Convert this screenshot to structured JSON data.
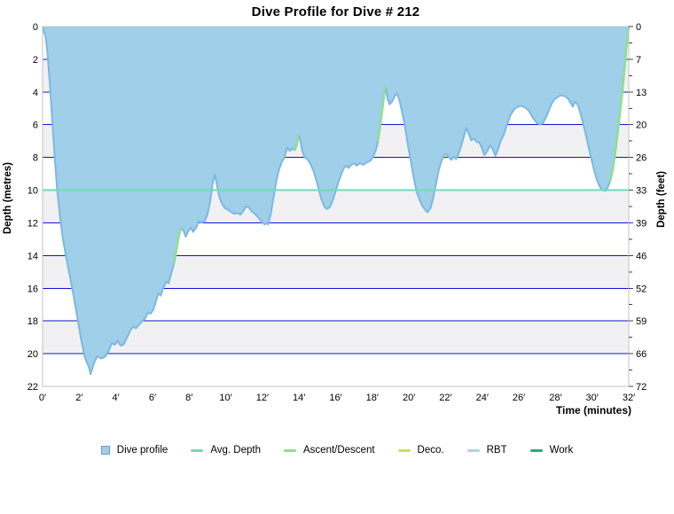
{
  "chart_data": {
    "type": "area",
    "title": "Dive Profile for Dive # 212",
    "x_label": "Time (minutes)",
    "y_left_label": "Depth (metres)",
    "y_right_label": "Depth (feet)",
    "x_range": [
      0,
      32
    ],
    "y_range": [
      0,
      22
    ],
    "grid": true,
    "x_tick_values": [
      0,
      2,
      4,
      6,
      8,
      10,
      12,
      14,
      16,
      18,
      20,
      22,
      24,
      26,
      28,
      30,
      32
    ],
    "x_tick_labels": [
      "0′",
      "2′",
      "4′",
      "6′",
      "8′",
      "10′",
      "12′",
      "14′",
      "16′",
      "18′",
      "20′",
      "22′",
      "24′",
      "26′",
      "28′",
      "30′",
      "32′"
    ],
    "y_left_ticks": [
      0,
      2,
      4,
      6,
      8,
      10,
      12,
      14,
      16,
      18,
      20,
      22
    ],
    "y_right_tick_labels": [
      "0",
      "7",
      "13",
      "20",
      "26",
      "33",
      "39",
      "46",
      "52",
      "59",
      "66",
      "72"
    ],
    "avg_depth_m": 10,
    "max_depth_m": 21.3,
    "profile": [
      [
        0,
        0
      ],
      [
        0.18,
        0.7
      ],
      [
        0.28,
        1.8
      ],
      [
        0.4,
        3.6
      ],
      [
        0.52,
        5.6
      ],
      [
        0.65,
        7.8
      ],
      [
        0.8,
        10
      ],
      [
        0.95,
        11.6
      ],
      [
        1.1,
        12.9
      ],
      [
        1.3,
        14.2
      ],
      [
        1.5,
        15.3
      ],
      [
        1.7,
        16.5
      ],
      [
        1.9,
        17.8
      ],
      [
        2.1,
        19.1
      ],
      [
        2.3,
        20.2
      ],
      [
        2.42,
        20.55
      ],
      [
        2.52,
        20.8
      ],
      [
        2.62,
        21.25
      ],
      [
        2.72,
        20.9
      ],
      [
        2.85,
        20.45
      ],
      [
        3,
        20.15
      ],
      [
        3.2,
        20.3
      ],
      [
        3.4,
        20.2
      ],
      [
        3.6,
        19.85
      ],
      [
        3.78,
        19.35
      ],
      [
        3.95,
        19.45
      ],
      [
        4.1,
        19.2
      ],
      [
        4.25,
        19.5
      ],
      [
        4.42,
        19.45
      ],
      [
        4.6,
        19.05
      ],
      [
        4.78,
        18.6
      ],
      [
        4.95,
        18.35
      ],
      [
        5.1,
        18.45
      ],
      [
        5.28,
        18.2
      ],
      [
        5.45,
        18
      ],
      [
        5.6,
        17.85
      ],
      [
        5.75,
        17.5
      ],
      [
        5.9,
        17.55
      ],
      [
        6.05,
        17.3
      ],
      [
        6.2,
        16.75
      ],
      [
        6.32,
        16.3
      ],
      [
        6.45,
        16.45
      ],
      [
        6.6,
        15.95
      ],
      [
        6.75,
        15.6
      ],
      [
        6.88,
        15.7
      ],
      [
        7.02,
        15.1
      ],
      [
        7.18,
        14.5
      ],
      [
        7.3,
        13.7
      ],
      [
        7.45,
        12.7
      ],
      [
        7.58,
        12.3
      ],
      [
        7.7,
        12.5
      ],
      [
        7.82,
        12.85
      ],
      [
        7.95,
        12.5
      ],
      [
        8.1,
        12.3
      ],
      [
        8.22,
        12.55
      ],
      [
        8.38,
        12.3
      ],
      [
        8.52,
        11.9
      ],
      [
        8.68,
        12
      ],
      [
        8.85,
        11.9
      ],
      [
        9,
        11.5
      ],
      [
        9.15,
        10.7
      ],
      [
        9.28,
        9.6
      ],
      [
        9.4,
        9.05
      ],
      [
        9.52,
        9.7
      ],
      [
        9.65,
        10.4
      ],
      [
        9.8,
        10.85
      ],
      [
        9.95,
        11.1
      ],
      [
        10.12,
        11.2
      ],
      [
        10.3,
        11.35
      ],
      [
        10.48,
        11.45
      ],
      [
        10.65,
        11.4
      ],
      [
        10.8,
        11.5
      ],
      [
        10.95,
        11.3
      ],
      [
        11.1,
        11
      ],
      [
        11.25,
        11.05
      ],
      [
        11.42,
        11.3
      ],
      [
        11.58,
        11.45
      ],
      [
        11.72,
        11.6
      ],
      [
        11.88,
        11.8
      ],
      [
        12.02,
        12
      ],
      [
        12.12,
        12.1
      ],
      [
        12.22,
        12
      ],
      [
        12.3,
        12.1
      ],
      [
        12.45,
        11.5
      ],
      [
        12.6,
        10.5
      ],
      [
        12.75,
        9.5
      ],
      [
        12.9,
        8.75
      ],
      [
        13.05,
        8.3
      ],
      [
        13.2,
        8
      ],
      [
        13.35,
        7.4
      ],
      [
        13.5,
        7.6
      ],
      [
        13.65,
        7.45
      ],
      [
        13.78,
        7.55
      ],
      [
        13.88,
        7.2
      ],
      [
        13.97,
        6.6
      ],
      [
        14.07,
        6.95
      ],
      [
        14.18,
        7.6
      ],
      [
        14.3,
        8
      ],
      [
        14.45,
        8.1
      ],
      [
        14.62,
        8.4
      ],
      [
        14.8,
        8.85
      ],
      [
        15,
        9.6
      ],
      [
        15.2,
        10.5
      ],
      [
        15.38,
        11
      ],
      [
        15.52,
        11.15
      ],
      [
        15.68,
        11.05
      ],
      [
        15.85,
        10.6
      ],
      [
        16,
        10.05
      ],
      [
        16.15,
        9.5
      ],
      [
        16.3,
        9.05
      ],
      [
        16.45,
        8.65
      ],
      [
        16.58,
        8.5
      ],
      [
        16.7,
        8.65
      ],
      [
        16.85,
        8.45
      ],
      [
        17,
        8.35
      ],
      [
        17.15,
        8.5
      ],
      [
        17.32,
        8.35
      ],
      [
        17.5,
        8.45
      ],
      [
        17.7,
        8.3
      ],
      [
        17.9,
        8.2
      ],
      [
        18.05,
        7.95
      ],
      [
        18.2,
        7.55
      ],
      [
        18.32,
        6.95
      ],
      [
        18.45,
        5.9
      ],
      [
        18.58,
        4.75
      ],
      [
        18.68,
        3.85
      ],
      [
        18.73,
        3.7
      ],
      [
        18.82,
        4.4
      ],
      [
        18.95,
        4.75
      ],
      [
        19.1,
        4.55
      ],
      [
        19.25,
        4.2
      ],
      [
        19.35,
        4.1
      ],
      [
        19.48,
        4.5
      ],
      [
        19.62,
        5.2
      ],
      [
        19.78,
        6.1
      ],
      [
        19.92,
        7.1
      ],
      [
        20.08,
        8.1
      ],
      [
        20.25,
        9.2
      ],
      [
        20.42,
        10.1
      ],
      [
        20.58,
        10.6
      ],
      [
        20.72,
        10.95
      ],
      [
        20.88,
        11.2
      ],
      [
        21.02,
        11.35
      ],
      [
        21.18,
        11.1
      ],
      [
        21.32,
        10.5
      ],
      [
        21.48,
        9.6
      ],
      [
        21.62,
        8.8
      ],
      [
        21.78,
        8.2
      ],
      [
        21.92,
        7.85
      ],
      [
        22.05,
        7.8
      ],
      [
        22.18,
        8
      ],
      [
        22.32,
        8.15
      ],
      [
        22.45,
        7.95
      ],
      [
        22.58,
        8.1
      ],
      [
        22.72,
        7.75
      ],
      [
        22.85,
        7.3
      ],
      [
        23,
        6.7
      ],
      [
        23.12,
        6.2
      ],
      [
        23.25,
        6.5
      ],
      [
        23.4,
        6.95
      ],
      [
        23.55,
        6.85
      ],
      [
        23.7,
        7.05
      ],
      [
        23.85,
        7.1
      ],
      [
        24,
        7.5
      ],
      [
        24.12,
        7.85
      ],
      [
        24.28,
        7.6
      ],
      [
        24.42,
        7.25
      ],
      [
        24.58,
        7.5
      ],
      [
        24.72,
        7.9
      ],
      [
        24.88,
        7.45
      ],
      [
        25.02,
        6.95
      ],
      [
        25.18,
        6.6
      ],
      [
        25.35,
        6
      ],
      [
        25.55,
        5.4
      ],
      [
        25.75,
        5.05
      ],
      [
        25.95,
        4.9
      ],
      [
        26.15,
        4.85
      ],
      [
        26.35,
        4.95
      ],
      [
        26.55,
        5.15
      ],
      [
        26.75,
        5.55
      ],
      [
        26.95,
        5.85
      ],
      [
        27.15,
        6
      ],
      [
        27.32,
        5.9
      ],
      [
        27.5,
        5.5
      ],
      [
        27.65,
        5.1
      ],
      [
        27.8,
        4.7
      ],
      [
        27.95,
        4.45
      ],
      [
        28.12,
        4.3
      ],
      [
        28.3,
        4.2
      ],
      [
        28.5,
        4.25
      ],
      [
        28.68,
        4.4
      ],
      [
        28.85,
        4.7
      ],
      [
        28.95,
        4.9
      ],
      [
        29.05,
        4.6
      ],
      [
        29.2,
        4.75
      ],
      [
        29.35,
        5.25
      ],
      [
        29.5,
        5.9
      ],
      [
        29.65,
        6.6
      ],
      [
        29.8,
        7.35
      ],
      [
        29.95,
        8.05
      ],
      [
        30.1,
        8.75
      ],
      [
        30.25,
        9.35
      ],
      [
        30.4,
        9.75
      ],
      [
        30.55,
        9.98
      ],
      [
        30.7,
        10.05
      ],
      [
        30.85,
        9.85
      ],
      [
        31,
        9.4
      ],
      [
        31.15,
        8.6
      ],
      [
        31.3,
        7.4
      ],
      [
        31.45,
        6
      ],
      [
        31.58,
        4.7
      ],
      [
        31.7,
        3.4
      ],
      [
        31.8,
        2.2
      ],
      [
        31.9,
        1.05
      ],
      [
        32,
        0
      ]
    ],
    "ascent_segments": [
      [
        [
          7.18,
          14.5
        ],
        [
          7.3,
          13.7
        ],
        [
          7.45,
          12.7
        ],
        [
          7.58,
          12.3
        ]
      ],
      [
        [
          13.78,
          7.55
        ],
        [
          13.88,
          7.2
        ],
        [
          13.97,
          6.6
        ]
      ],
      [
        [
          18.32,
          6.95
        ],
        [
          18.45,
          5.9
        ],
        [
          18.58,
          4.75
        ],
        [
          18.68,
          3.85
        ],
        [
          18.73,
          3.7
        ]
      ],
      [
        [
          31,
          9.4
        ],
        [
          31.15,
          8.6
        ],
        [
          31.3,
          7.4
        ],
        [
          31.45,
          6
        ],
        [
          31.58,
          4.7
        ],
        [
          31.7,
          3.4
        ],
        [
          31.8,
          2.2
        ],
        [
          31.9,
          1.05
        ],
        [
          32,
          0
        ]
      ]
    ],
    "legend": [
      {
        "label": "Dive profile",
        "swatch": "square",
        "color": "#9fcfe9"
      },
      {
        "label": "Avg. Depth",
        "swatch": "line",
        "color": "#72d9bc"
      },
      {
        "label": "Ascent/Descent",
        "swatch": "line",
        "color": "#8ee08e"
      },
      {
        "label": "Deco.",
        "swatch": "line",
        "color": "#d4da5a"
      },
      {
        "label": "RBT",
        "swatch": "line",
        "color": "#a4d7f0"
      },
      {
        "label": "Work",
        "swatch": "line",
        "color": "#2ea880"
      }
    ],
    "legend_position": "bottom",
    "colors": {
      "profile_fill": "#9fcfe9",
      "profile_stroke": "#7cb8e2",
      "profile_swatch_border": "#6d9ec7",
      "avg_depth": "#72d9bc",
      "ascent": "#8ee08e",
      "grid": "#1313cd",
      "band": "#f1f1f3",
      "plot_border": "#c3c3ca",
      "tick": "#444444"
    }
  }
}
